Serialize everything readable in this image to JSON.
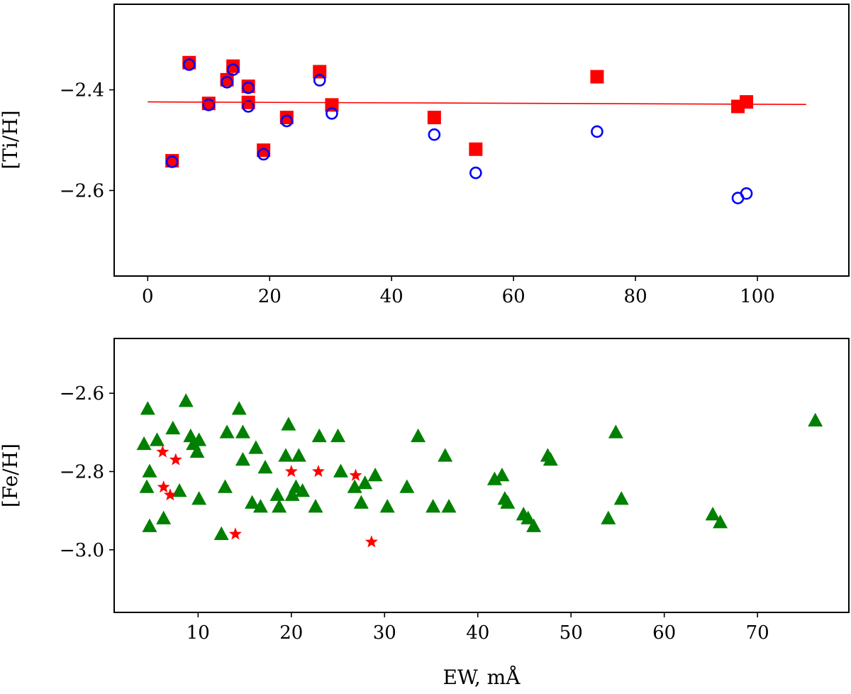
{
  "chart_data": [
    {
      "type": "scatter",
      "title": "",
      "xlabel": "",
      "ylabel": "[Ti/H]",
      "xlim": [
        -5.5,
        115
      ],
      "ylim": [
        -2.77,
        -2.23
      ],
      "xticks": [
        0,
        20,
        40,
        60,
        80,
        100
      ],
      "xtick_labels": [
        "0",
        "20",
        "40",
        "60",
        "80",
        "100"
      ],
      "yticks": [
        -2.4,
        -2.6
      ],
      "ytick_labels": [
        "−2.4",
        "−2.6"
      ],
      "series": [
        {
          "name": "squares",
          "marker": "square",
          "color": "#ff0000",
          "points": [
            [
              4,
              -2.541
            ],
            [
              6.8,
              -2.346
            ],
            [
              10,
              -2.427
            ],
            [
              13,
              -2.38
            ],
            [
              14,
              -2.353
            ],
            [
              16.5,
              -2.393
            ],
            [
              16.5,
              -2.425
            ],
            [
              19,
              -2.52
            ],
            [
              22.8,
              -2.455
            ],
            [
              28.2,
              -2.364
            ],
            [
              30.2,
              -2.43
            ],
            [
              47,
              -2.455
            ],
            [
              53.8,
              -2.518
            ],
            [
              73.7,
              -2.374
            ],
            [
              96.8,
              -2.433
            ],
            [
              98.2,
              -2.424
            ]
          ]
        },
        {
          "name": "circles",
          "marker": "circle-open",
          "color": "#0000ff",
          "points": [
            [
              4,
              -2.543
            ],
            [
              6.8,
              -2.35
            ],
            [
              10,
              -2.43
            ],
            [
              13,
              -2.385
            ],
            [
              14,
              -2.36
            ],
            [
              16.5,
              -2.396
            ],
            [
              16.5,
              -2.433
            ],
            [
              19,
              -2.528
            ],
            [
              22.8,
              -2.462
            ],
            [
              28.2,
              -2.381
            ],
            [
              30.2,
              -2.447
            ],
            [
              47,
              -2.489
            ],
            [
              53.8,
              -2.565
            ],
            [
              73.7,
              -2.483
            ],
            [
              96.8,
              -2.615
            ],
            [
              98.2,
              -2.606
            ]
          ]
        },
        {
          "name": "fit",
          "marker": "line",
          "color": "#ff0000",
          "points": [
            [
              0,
              -2.424
            ],
            [
              108,
              -2.429
            ]
          ]
        }
      ]
    },
    {
      "type": "scatter",
      "title": "",
      "xlabel": "EW, mÅ",
      "ylabel": "[Fe/H]",
      "xlim": [
        1,
        79.8
      ],
      "ylim": [
        -3.16,
        -2.46
      ],
      "xticks": [
        10,
        20,
        30,
        40,
        50,
        60,
        70
      ],
      "xtick_labels": [
        "10",
        "20",
        "30",
        "40",
        "50",
        "60",
        "70"
      ],
      "yticks": [
        -2.6,
        -2.8,
        -3.0
      ],
      "ytick_labels": [
        "−2.6",
        "−2.8",
        "−3.0"
      ],
      "series": [
        {
          "name": "triangles",
          "marker": "triangle",
          "color": "#008000",
          "points": [
            [
              4.6,
              -2.64
            ],
            [
              4.2,
              -2.73
            ],
            [
              5.6,
              -2.72
            ],
            [
              4.8,
              -2.8
            ],
            [
              4.5,
              -2.84
            ],
            [
              4.8,
              -2.94
            ],
            [
              6.3,
              -2.92
            ],
            [
              7.3,
              -2.69
            ],
            [
              8,
              -2.85
            ],
            [
              8.7,
              -2.62
            ],
            [
              9.2,
              -2.71
            ],
            [
              9.5,
              -2.73
            ],
            [
              9.9,
              -2.75
            ],
            [
              10.1,
              -2.72
            ],
            [
              10.1,
              -2.87
            ],
            [
              12.5,
              -2.96
            ],
            [
              12.9,
              -2.84
            ],
            [
              13.1,
              -2.7
            ],
            [
              14.4,
              -2.64
            ],
            [
              14.8,
              -2.7
            ],
            [
              14.8,
              -2.77
            ],
            [
              15.8,
              -2.88
            ],
            [
              16.2,
              -2.74
            ],
            [
              16.7,
              -2.89
            ],
            [
              17.2,
              -2.79
            ],
            [
              18.5,
              -2.86
            ],
            [
              18.7,
              -2.89
            ],
            [
              19.4,
              -2.76
            ],
            [
              19.7,
              -2.68
            ],
            [
              20.1,
              -2.86
            ],
            [
              20.5,
              -2.84
            ],
            [
              20.8,
              -2.76
            ],
            [
              21.2,
              -2.85
            ],
            [
              22.6,
              -2.89
            ],
            [
              23,
              -2.71
            ],
            [
              25,
              -2.71
            ],
            [
              25.3,
              -2.8
            ],
            [
              26.8,
              -2.84
            ],
            [
              27.5,
              -2.88
            ],
            [
              27.9,
              -2.83
            ],
            [
              29,
              -2.81
            ],
            [
              30.3,
              -2.89
            ],
            [
              32.4,
              -2.84
            ],
            [
              33.6,
              -2.71
            ],
            [
              35.2,
              -2.89
            ],
            [
              36.5,
              -2.76
            ],
            [
              36.9,
              -2.89
            ],
            [
              41.8,
              -2.82
            ],
            [
              42.6,
              -2.81
            ],
            [
              42.9,
              -2.87
            ],
            [
              43.2,
              -2.88
            ],
            [
              44.9,
              -2.91
            ],
            [
              45.4,
              -2.92
            ],
            [
              46,
              -2.94
            ],
            [
              47.5,
              -2.76
            ],
            [
              47.8,
              -2.77
            ],
            [
              54,
              -2.92
            ],
            [
              54.8,
              -2.7
            ],
            [
              55.4,
              -2.87
            ],
            [
              65.2,
              -2.91
            ],
            [
              66,
              -2.93
            ],
            [
              76.2,
              -2.67
            ]
          ]
        },
        {
          "name": "stars",
          "marker": "star",
          "color": "#ff0000",
          "points": [
            [
              6.2,
              -2.75
            ],
            [
              7.6,
              -2.77
            ],
            [
              6.3,
              -2.84
            ],
            [
              7,
              -2.86
            ],
            [
              14,
              -2.96
            ],
            [
              20,
              -2.8
            ],
            [
              22.9,
              -2.8
            ],
            [
              26.9,
              -2.81
            ],
            [
              28.6,
              -2.98
            ]
          ]
        }
      ]
    }
  ]
}
